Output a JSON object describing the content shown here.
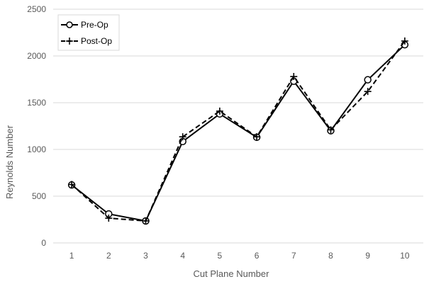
{
  "chart_data": {
    "type": "line",
    "title": "",
    "xlabel": "Cut Plane Number",
    "ylabel": "Reynolds Number",
    "x": [
      1,
      2,
      3,
      4,
      5,
      6,
      7,
      8,
      9,
      10
    ],
    "ylim": [
      0,
      2500
    ],
    "yticks": [
      0,
      500,
      1000,
      1500,
      2000,
      2500
    ],
    "grid": true,
    "legend_position": "top-left",
    "series": [
      {
        "name": "Pre-Op",
        "style": "solid",
        "marker": "circle",
        "values": [
          620,
          310,
          235,
          1085,
          1380,
          1130,
          1730,
          1200,
          1745,
          2120
        ]
      },
      {
        "name": "Post-Op",
        "style": "dashed",
        "marker": "plus",
        "values": [
          625,
          265,
          235,
          1135,
          1410,
          1135,
          1780,
          1210,
          1620,
          2160
        ]
      }
    ]
  },
  "colors": {
    "line": "#000000",
    "grid": "#d9d9d9",
    "text": "#595959"
  }
}
